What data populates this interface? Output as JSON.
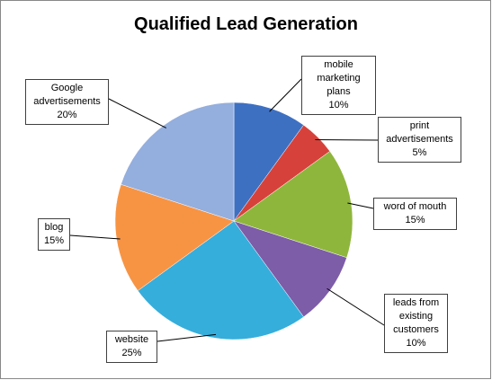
{
  "chart_data": {
    "type": "pie",
    "title": "Qualified Lead Generation",
    "categories": [
      "mobile marketing plans",
      "print advertisements",
      "word of mouth",
      "leads from existing customers",
      "website",
      "blog",
      "Google advertisements"
    ],
    "values": [
      10,
      5,
      15,
      10,
      25,
      15,
      20
    ],
    "value_labels": [
      "10%",
      "5%",
      "15%",
      "10%",
      "25%",
      "15%",
      "20%"
    ],
    "colors": [
      "#3e70c2",
      "#d6423b",
      "#8fb63c",
      "#7d5ca8",
      "#35aedc",
      "#f79444",
      "#94aedd"
    ]
  }
}
